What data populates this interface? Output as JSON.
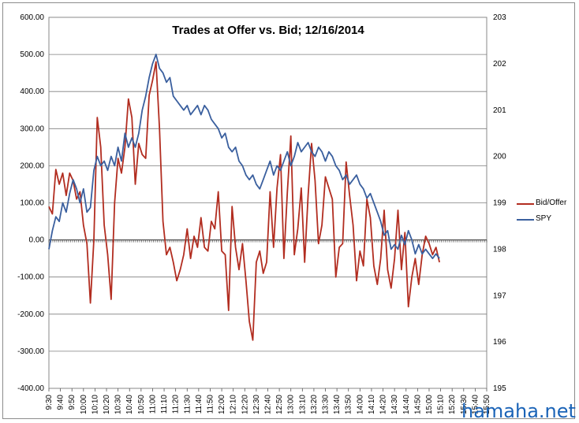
{
  "chart_data": {
    "type": "line",
    "title": "Trades at Offer vs. Bid; 12/16/2014",
    "watermark": "hamaha.net",
    "x": [
      "9:30",
      "9:40",
      "9:50",
      "10:00",
      "10:10",
      "10:20",
      "10:30",
      "10:40",
      "10:50",
      "11:00",
      "11:10",
      "11:20",
      "11:30",
      "11:40",
      "11:50",
      "12:00",
      "12:10",
      "12:20",
      "12:30",
      "12:40",
      "12:50",
      "13:00",
      "13:10",
      "13:20",
      "13:30",
      "13:40",
      "13:50",
      "14:00",
      "14:10",
      "14:20",
      "14:30",
      "14:40",
      "14:50",
      "15:00",
      "15:10",
      "15:20",
      "15:30",
      "15:40",
      "15:50"
    ],
    "y_left": {
      "ticks": [
        "600.00",
        "500.00",
        "400.00",
        "300.00",
        "200.00",
        "100.00",
        "0.00",
        "-100.00",
        "-200.00",
        "-300.00",
        "-400.00"
      ],
      "ylim": [
        -400,
        600
      ]
    },
    "y_right": {
      "ticks": [
        "203",
        "202",
        "201",
        "200",
        "199",
        "198",
        "197",
        "196",
        "195"
      ],
      "ylim": [
        195,
        203
      ]
    },
    "grid": true,
    "legend_position": "right",
    "series": [
      {
        "name": "Bid/Offer",
        "axis": "left",
        "color": "#b22d20",
        "values": [
          [
            0,
            90
          ],
          [
            0.3,
            70
          ],
          [
            0.6,
            190
          ],
          [
            0.9,
            150
          ],
          [
            1.2,
            180
          ],
          [
            1.5,
            120
          ],
          [
            1.8,
            180
          ],
          [
            2.1,
            160
          ],
          [
            2.4,
            110
          ],
          [
            2.7,
            130
          ],
          [
            3.0,
            40
          ],
          [
            3.3,
            -10
          ],
          [
            3.6,
            -170
          ],
          [
            3.9,
            0
          ],
          [
            4.2,
            330
          ],
          [
            4.5,
            250
          ],
          [
            4.8,
            40
          ],
          [
            5.1,
            -40
          ],
          [
            5.4,
            -160
          ],
          [
            5.7,
            100
          ],
          [
            6.0,
            220
          ],
          [
            6.3,
            180
          ],
          [
            6.6,
            250
          ],
          [
            6.9,
            380
          ],
          [
            7.2,
            330
          ],
          [
            7.5,
            150
          ],
          [
            7.8,
            260
          ],
          [
            8.1,
            230
          ],
          [
            8.4,
            220
          ],
          [
            8.7,
            390
          ],
          [
            9.0,
            430
          ],
          [
            9.3,
            480
          ],
          [
            9.6,
            300
          ],
          [
            9.9,
            50
          ],
          [
            10.2,
            -40
          ],
          [
            10.5,
            -20
          ],
          [
            10.8,
            -60
          ],
          [
            11.1,
            -110
          ],
          [
            11.4,
            -80
          ],
          [
            11.7,
            -40
          ],
          [
            12.0,
            30
          ],
          [
            12.3,
            -50
          ],
          [
            12.6,
            10
          ],
          [
            12.9,
            -20
          ],
          [
            13.2,
            60
          ],
          [
            13.5,
            -20
          ],
          [
            13.8,
            -30
          ],
          [
            14.1,
            50
          ],
          [
            14.4,
            30
          ],
          [
            14.7,
            130
          ],
          [
            15.0,
            -30
          ],
          [
            15.3,
            -40
          ],
          [
            15.6,
            -190
          ],
          [
            15.9,
            90
          ],
          [
            16.2,
            -20
          ],
          [
            16.5,
            -80
          ],
          [
            16.8,
            -10
          ],
          [
            17.1,
            -110
          ],
          [
            17.4,
            -220
          ],
          [
            17.7,
            -270
          ],
          [
            18.0,
            -60
          ],
          [
            18.3,
            -30
          ],
          [
            18.6,
            -90
          ],
          [
            18.9,
            -60
          ],
          [
            19.2,
            130
          ],
          [
            19.5,
            -20
          ],
          [
            19.8,
            140
          ],
          [
            20.1,
            230
          ],
          [
            20.4,
            -50
          ],
          [
            20.7,
            130
          ],
          [
            21.0,
            280
          ],
          [
            21.3,
            -40
          ],
          [
            21.6,
            30
          ],
          [
            21.9,
            140
          ],
          [
            22.2,
            -60
          ],
          [
            22.5,
            120
          ],
          [
            22.8,
            260
          ],
          [
            23.1,
            160
          ],
          [
            23.4,
            -10
          ],
          [
            23.7,
            40
          ],
          [
            24.0,
            170
          ],
          [
            24.3,
            140
          ],
          [
            24.6,
            110
          ],
          [
            24.9,
            -100
          ],
          [
            25.2,
            -20
          ],
          [
            25.5,
            -10
          ],
          [
            25.8,
            210
          ],
          [
            26.1,
            120
          ],
          [
            26.4,
            40
          ],
          [
            26.7,
            -110
          ],
          [
            27.0,
            -30
          ],
          [
            27.3,
            -70
          ],
          [
            27.6,
            110
          ],
          [
            27.9,
            60
          ],
          [
            28.2,
            -70
          ],
          [
            28.5,
            -120
          ],
          [
            28.8,
            -50
          ],
          [
            29.1,
            80
          ],
          [
            29.4,
            -80
          ],
          [
            29.7,
            -130
          ],
          [
            30.0,
            -50
          ],
          [
            30.3,
            80
          ],
          [
            30.6,
            -80
          ],
          [
            30.9,
            20
          ],
          [
            31.2,
            -180
          ],
          [
            31.5,
            -100
          ],
          [
            31.8,
            -50
          ],
          [
            32.1,
            -120
          ],
          [
            32.4,
            -40
          ],
          [
            32.7,
            10
          ],
          [
            33.0,
            -10
          ],
          [
            33.3,
            -40
          ],
          [
            33.6,
            -20
          ],
          [
            33.9,
            -60
          ]
        ]
      },
      {
        "name": "SPY",
        "axis": "right",
        "color": "#3a5f9e",
        "values": [
          [
            0,
            198.0
          ],
          [
            0.3,
            198.4
          ],
          [
            0.6,
            198.7
          ],
          [
            0.9,
            198.6
          ],
          [
            1.2,
            199.0
          ],
          [
            1.5,
            198.8
          ],
          [
            1.8,
            199.2
          ],
          [
            2.1,
            199.5
          ],
          [
            2.4,
            199.3
          ],
          [
            2.7,
            199.0
          ],
          [
            3.0,
            199.3
          ],
          [
            3.3,
            198.8
          ],
          [
            3.6,
            198.9
          ],
          [
            3.9,
            199.7
          ],
          [
            4.2,
            200.0
          ],
          [
            4.5,
            199.8
          ],
          [
            4.8,
            199.9
          ],
          [
            5.1,
            199.7
          ],
          [
            5.4,
            200.0
          ],
          [
            5.7,
            199.8
          ],
          [
            6.0,
            200.2
          ],
          [
            6.3,
            199.9
          ],
          [
            6.6,
            200.5
          ],
          [
            6.9,
            200.2
          ],
          [
            7.2,
            200.4
          ],
          [
            7.5,
            200.2
          ],
          [
            7.8,
            200.5
          ],
          [
            8.1,
            201.0
          ],
          [
            8.4,
            201.3
          ],
          [
            8.7,
            201.7
          ],
          [
            9.0,
            202.0
          ],
          [
            9.3,
            202.2
          ],
          [
            9.6,
            201.9
          ],
          [
            9.9,
            201.8
          ],
          [
            10.2,
            201.6
          ],
          [
            10.5,
            201.7
          ],
          [
            10.8,
            201.3
          ],
          [
            11.1,
            201.2
          ],
          [
            11.4,
            201.1
          ],
          [
            11.7,
            201.0
          ],
          [
            12.0,
            201.1
          ],
          [
            12.3,
            200.9
          ],
          [
            12.6,
            201.0
          ],
          [
            12.9,
            201.1
          ],
          [
            13.2,
            200.9
          ],
          [
            13.5,
            201.1
          ],
          [
            13.8,
            201.0
          ],
          [
            14.1,
            200.8
          ],
          [
            14.4,
            200.7
          ],
          [
            14.7,
            200.6
          ],
          [
            15.0,
            200.4
          ],
          [
            15.3,
            200.5
          ],
          [
            15.6,
            200.2
          ],
          [
            15.9,
            200.1
          ],
          [
            16.2,
            200.2
          ],
          [
            16.5,
            199.9
          ],
          [
            16.8,
            199.8
          ],
          [
            17.1,
            199.6
          ],
          [
            17.4,
            199.5
          ],
          [
            17.7,
            199.6
          ],
          [
            18.0,
            199.4
          ],
          [
            18.3,
            199.3
          ],
          [
            18.6,
            199.5
          ],
          [
            18.9,
            199.7
          ],
          [
            19.2,
            199.9
          ],
          [
            19.5,
            199.6
          ],
          [
            19.8,
            199.8
          ],
          [
            20.1,
            199.7
          ],
          [
            20.4,
            199.9
          ],
          [
            20.7,
            200.1
          ],
          [
            21.0,
            199.8
          ],
          [
            21.3,
            200.0
          ],
          [
            21.6,
            200.3
          ],
          [
            21.9,
            200.1
          ],
          [
            22.2,
            200.2
          ],
          [
            22.5,
            200.3
          ],
          [
            22.8,
            200.1
          ],
          [
            23.1,
            200.0
          ],
          [
            23.4,
            200.2
          ],
          [
            23.7,
            200.1
          ],
          [
            24.0,
            199.9
          ],
          [
            24.3,
            200.1
          ],
          [
            24.6,
            200.0
          ],
          [
            24.9,
            199.8
          ],
          [
            25.2,
            199.7
          ],
          [
            25.5,
            199.5
          ],
          [
            25.8,
            199.6
          ],
          [
            26.1,
            199.4
          ],
          [
            26.4,
            199.5
          ],
          [
            26.7,
            199.6
          ],
          [
            27.0,
            199.4
          ],
          [
            27.3,
            199.3
          ],
          [
            27.6,
            199.1
          ],
          [
            27.9,
            199.2
          ],
          [
            28.2,
            199.0
          ],
          [
            28.5,
            198.8
          ],
          [
            28.8,
            198.6
          ],
          [
            29.1,
            198.3
          ],
          [
            29.4,
            198.4
          ],
          [
            29.7,
            198.0
          ],
          [
            30.0,
            198.1
          ],
          [
            30.3,
            198.0
          ],
          [
            30.6,
            198.3
          ],
          [
            30.9,
            198.1
          ],
          [
            31.2,
            198.4
          ],
          [
            31.5,
            198.2
          ],
          [
            31.8,
            197.9
          ],
          [
            32.1,
            198.1
          ],
          [
            32.4,
            197.9
          ],
          [
            32.7,
            198.0
          ],
          [
            33.0,
            197.9
          ],
          [
            33.3,
            197.8
          ],
          [
            33.6,
            197.9
          ],
          [
            33.9,
            197.8
          ]
        ]
      }
    ]
  }
}
